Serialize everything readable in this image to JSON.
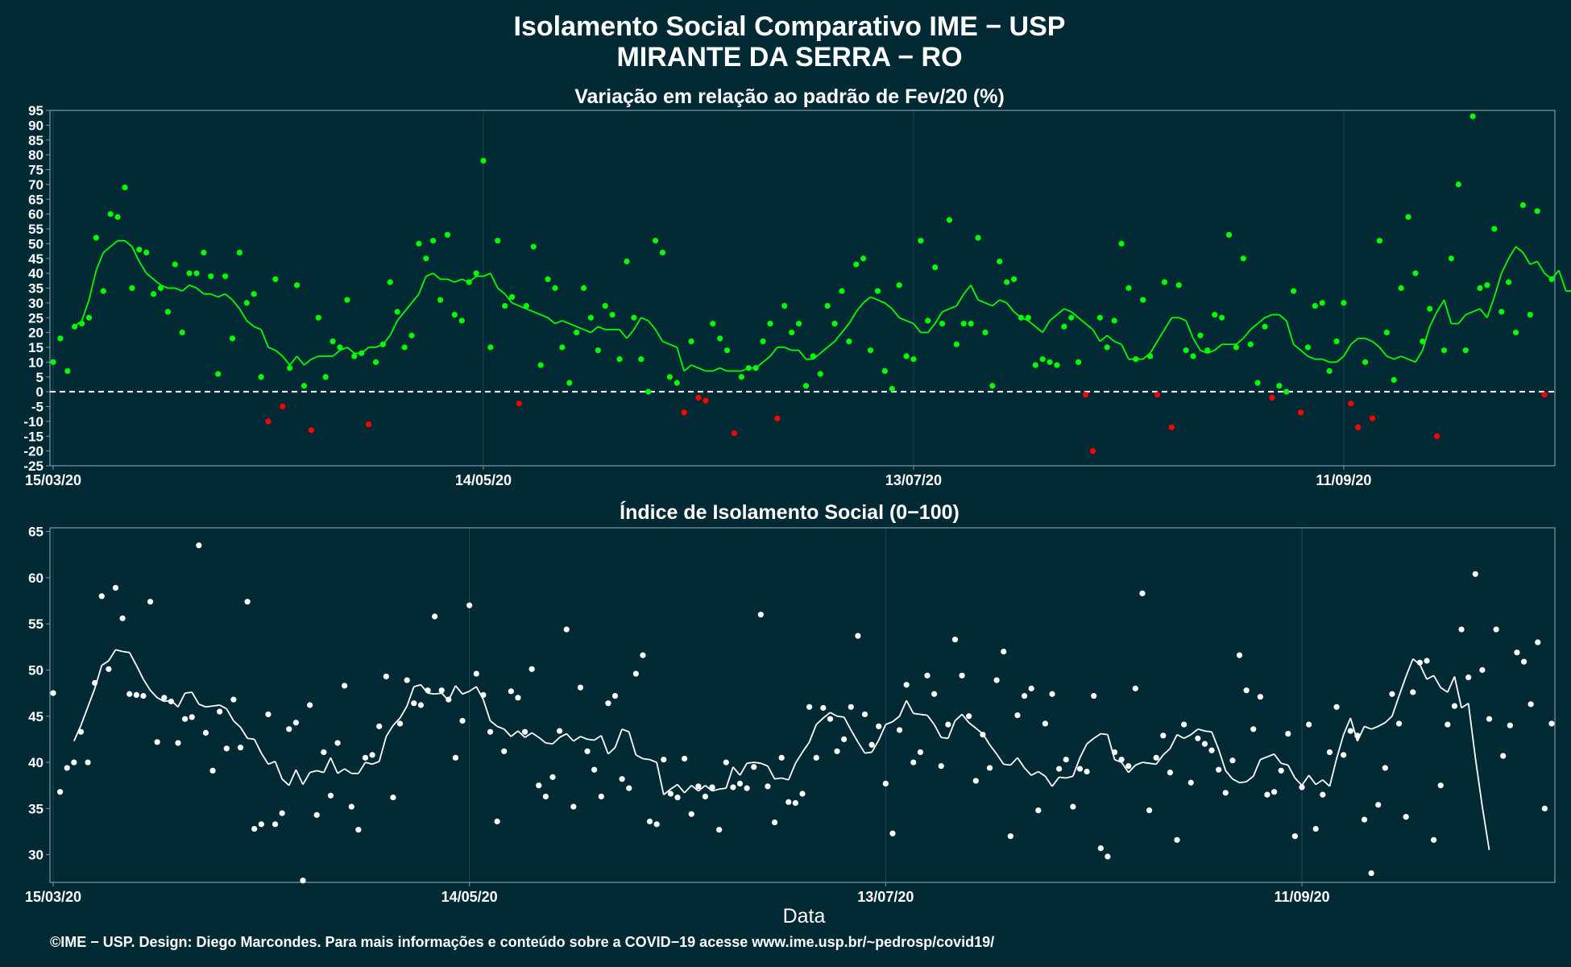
{
  "header": {
    "title_line1": "Isolamento Social Comparativo IME − USP",
    "title_line2": "MIRANTE DA SERRA − RO"
  },
  "footer": {
    "credit": "©IME − USP. Design: Diego Marcondes. Para mais informações e conteúdo sobre a COVID−19 acesse www.ime.usp.br/~pedrosp/covid19/"
  },
  "colors": {
    "background": "#022a35",
    "positive": "#00ff00",
    "negative": "#ff0000",
    "index": "#ffffff",
    "grid": "#1d4450",
    "frame": "#7a9aa3"
  },
  "chart_data": [
    {
      "type": "scatter",
      "title": "Variação em relação ao padrão de Fev/20 (%)",
      "xlabel": "",
      "ylabel": "",
      "x_start": "15/03/20",
      "x_end": "10/10/20",
      "x_ticks": [
        "15/03/20",
        "14/05/20",
        "13/07/20",
        "11/09/20"
      ],
      "ylim": [
        -25,
        95
      ],
      "y_ticks": [
        -25,
        -20,
        -15,
        -10,
        -5,
        0,
        5,
        10,
        15,
        20,
        25,
        30,
        35,
        40,
        45,
        50,
        55,
        60,
        65,
        70,
        75,
        80,
        85,
        90,
        95
      ],
      "reference_line": 0,
      "color_rule": "green when value >= 0, red when value < 0",
      "series": [
        {
          "values": [
            10,
            18,
            7,
            22,
            23,
            25,
            52,
            34,
            60,
            59,
            69,
            35,
            48,
            47,
            33,
            35,
            27,
            43,
            20,
            40,
            40,
            47,
            39,
            6,
            39,
            18,
            47,
            30,
            33,
            5,
            -10,
            38,
            -5,
            8,
            36,
            2,
            -13,
            25,
            5,
            17,
            15,
            31,
            12,
            13,
            -11,
            10,
            16,
            37,
            27,
            15,
            19,
            50,
            45,
            51,
            31,
            53,
            26,
            24,
            37,
            40,
            78,
            15,
            51,
            29,
            32,
            -4,
            29,
            49,
            9,
            38,
            35,
            15,
            3,
            20,
            35,
            25,
            14,
            29,
            26,
            11,
            44,
            25,
            11,
            0,
            51,
            47,
            5,
            3,
            -7,
            17,
            -2,
            -3,
            23,
            18,
            14,
            -14,
            5,
            8,
            8,
            17,
            23,
            -9,
            29,
            20,
            23,
            2,
            12,
            6,
            29,
            23,
            34,
            17,
            43,
            45,
            14,
            34,
            7,
            1,
            36,
            12,
            11,
            51,
            24,
            42,
            23,
            58,
            16,
            23,
            23,
            52,
            20,
            2,
            44,
            37,
            38,
            25,
            25,
            9,
            11,
            10,
            9,
            22,
            25,
            10,
            -1,
            -20,
            25,
            15,
            24,
            50,
            35,
            11,
            31,
            12,
            -1,
            37,
            -12,
            36,
            14,
            12,
            19,
            14,
            26,
            25,
            53,
            15,
            45,
            16,
            3,
            22,
            -2,
            2,
            0,
            34,
            -7,
            15,
            29,
            30,
            7,
            17,
            30,
            -4,
            -12,
            10,
            -9,
            51,
            20,
            4,
            35,
            59,
            40,
            17,
            28,
            -15,
            14,
            45,
            70,
            14,
            93,
            35,
            36,
            55,
            27,
            37,
            20,
            63,
            26,
            61,
            -1,
            38
          ]
        },
        {
          "values": [
            null,
            null,
            null,
            22,
            24,
            31,
            41,
            47,
            49,
            51,
            51,
            49,
            44,
            40,
            38,
            36,
            35,
            35,
            34,
            36,
            35,
            33,
            33,
            32,
            33,
            31,
            28,
            24,
            22,
            21,
            15,
            14,
            12,
            9,
            12,
            9,
            11,
            12,
            12,
            12,
            14,
            15,
            13,
            13,
            15,
            15,
            16,
            19,
            24,
            27,
            30,
            33,
            39,
            40,
            38,
            38,
            37,
            38,
            37,
            39,
            39,
            40,
            35,
            33,
            30,
            29,
            28,
            27,
            26,
            25,
            23,
            24,
            23,
            22,
            21,
            20,
            22,
            21,
            21,
            21,
            18,
            21,
            25,
            24,
            21,
            17,
            16,
            15,
            7,
            9,
            8,
            7,
            7,
            8,
            7,
            7,
            7,
            8,
            8,
            10,
            12,
            15,
            15,
            14,
            14,
            11,
            11,
            13,
            15,
            17,
            20,
            23,
            27,
            30,
            32,
            31,
            30,
            28,
            25,
            24,
            23,
            20,
            20,
            23,
            27,
            28,
            29,
            33,
            36,
            31,
            30,
            29,
            31,
            30,
            27,
            25,
            24,
            22,
            20,
            24,
            26,
            28,
            27,
            25,
            23,
            21,
            17,
            19,
            17,
            16,
            11,
            11,
            11,
            13,
            17,
            21,
            25,
            25,
            24,
            18,
            14,
            13,
            14,
            16,
            16,
            16,
            18,
            21,
            23,
            25,
            26,
            26,
            24,
            16,
            14,
            12,
            11,
            11,
            10,
            10,
            12,
            16,
            18,
            18,
            17,
            15,
            12,
            11,
            12,
            11,
            10,
            14,
            22,
            27,
            31,
            23,
            23,
            26,
            27,
            28,
            25,
            32,
            40,
            45,
            49,
            47,
            43,
            44,
            40,
            38,
            41,
            34,
            34
          ]
        }
      ]
    },
    {
      "type": "scatter",
      "title": "Índice de Isolamento Social (0−100)",
      "xlabel": "Data",
      "ylabel": "",
      "x_start": "15/03/20",
      "x_end": "10/10/20",
      "x_ticks": [
        "15/03/20",
        "14/05/20",
        "13/07/20",
        "11/09/20"
      ],
      "ylim": [
        27,
        65.4
      ],
      "y_ticks": [
        30,
        35,
        40,
        45,
        50,
        55,
        60,
        65
      ],
      "series": [
        {
          "values": [
            47.5,
            36.8,
            39.4,
            40,
            43.3,
            40,
            48.6,
            58,
            50.1,
            58.9,
            55.6,
            47.4,
            47.3,
            47.2,
            57.4,
            42.2,
            47,
            46.6,
            42.1,
            44.7,
            44.9,
            63.5,
            43.2,
            39.1,
            45.5,
            41.5,
            46.8,
            41.6,
            57.4,
            32.8,
            33.3,
            45.2,
            33.3,
            34.5,
            43.6,
            44.3,
            27.2,
            46.2,
            34.3,
            41.1,
            36.4,
            42.1,
            48.3,
            35.2,
            32.7,
            40.5,
            40.8,
            43.9,
            49.3,
            36.2,
            44.2,
            48.9,
            46.4,
            46.2,
            47.8,
            55.8,
            47.8,
            46.8,
            40.5,
            44.5,
            57,
            49.6,
            47.3,
            43.3,
            33.6,
            41.2,
            47.7,
            47,
            43.3,
            50.1,
            37.5,
            36.3,
            38.4,
            43.4,
            54.4,
            35.2,
            48.1,
            41.2,
            39.2,
            36.3,
            46.4,
            47.2,
            38.2,
            37.2,
            49.6,
            51.6,
            33.6,
            33.3,
            40.3,
            36.6,
            36.2,
            40.4,
            34.4,
            37.4,
            36.3,
            37.3,
            32.7,
            40,
            37.3,
            37.7,
            37.2,
            39.5,
            56,
            37.4,
            33.5,
            40.5,
            35.7,
            35.6,
            36.6,
            46,
            40.5,
            45.9,
            44.7,
            41.2,
            42.5,
            46,
            53.7,
            45.2,
            41.9,
            43.9,
            37.7,
            32.3,
            43.5,
            48.4,
            40,
            41.1,
            49.4,
            47.4,
            39.6,
            44.1,
            53.3,
            49.4,
            45,
            38,
            43,
            39.4,
            48.9,
            52,
            32,
            45.1,
            47.2,
            48,
            34.8,
            44.2,
            47.4,
            39.3,
            40.3,
            35.2,
            39.3,
            39,
            47.2,
            30.7,
            29.8,
            41.1,
            40.3,
            39.6,
            48,
            58.3,
            34.8,
            40.5,
            42.9,
            38.9,
            31.6,
            44.1,
            37.8,
            42.6,
            42,
            41.3,
            39.2,
            36.7,
            40.2,
            51.6,
            47.8,
            43.6,
            47.1,
            36.5,
            36.8,
            39.1,
            43.1,
            32,
            37.3,
            44.1,
            32.8,
            36.5,
            41.1,
            46,
            40.8,
            43.4,
            42.9,
            33.8,
            28,
            35.4,
            39.4,
            47.4,
            44.2,
            34.1,
            47.6,
            50.8,
            51,
            31.6,
            37.5,
            44.1,
            46.1,
            54.4,
            49.2,
            60.4,
            50,
            44.7,
            54.4,
            40.7,
            44,
            51.9,
            50.9,
            46.3,
            53,
            35,
            44.2
          ]
        },
        {
          "values": [
            null,
            null,
            null,
            42.3,
            44,
            46,
            48,
            50.5,
            51,
            52.2,
            52,
            51.9,
            50.5,
            49,
            47.8,
            47,
            46.6,
            46.7,
            46,
            47.5,
            47.6,
            46.3,
            46,
            46.1,
            46.2,
            45.8,
            44.5,
            43.8,
            42.6,
            42.5,
            41,
            39.8,
            40.1,
            38.2,
            37.5,
            39.2,
            37.6,
            38.9,
            39.1,
            38.9,
            40.5,
            38.8,
            39.3,
            38.8,
            38.8,
            40,
            39.8,
            40.1,
            42.8,
            44,
            44.8,
            46.1,
            48.2,
            48.4,
            47.5,
            47.4,
            47.5,
            46.7,
            48.3,
            47.4,
            47.7,
            48.2,
            46.8,
            44.5,
            43.9,
            43.6,
            42.8,
            43.4,
            42.7,
            43.2,
            42.7,
            42.1,
            42,
            42.7,
            43.1,
            42.3,
            42.8,
            42.5,
            42.4,
            42.9,
            40.9,
            41.6,
            43.6,
            43.3,
            40.8,
            40.4,
            40.3,
            40,
            36.5,
            37.1,
            37.6,
            36.7,
            37.5,
            36.9,
            37.5,
            36.9,
            37.1,
            37.2,
            39.5,
            38.6,
            39.9,
            40,
            39.9,
            39.6,
            38.2,
            38.3,
            38.1,
            39.9,
            41.1,
            42.2,
            44.1,
            44.8,
            45.4,
            45,
            44.9,
            43.5,
            42.2,
            41,
            41.1,
            42.4,
            44.1,
            44.4,
            45,
            46.7,
            45.3,
            45.2,
            45.1,
            44.1,
            42.7,
            42.6,
            44.5,
            45.2,
            44.3,
            43.7,
            43.1,
            41.9,
            40.9,
            39.8,
            39.7,
            40.5,
            39.4,
            38.6,
            39,
            38.5,
            37.4,
            38.4,
            38.3,
            38.5,
            40.5,
            42,
            42.6,
            43.1,
            43,
            40.3,
            40,
            38.9,
            39.7,
            40,
            39.9,
            39.8,
            40.8,
            41.5,
            43,
            42.6,
            43,
            43.6,
            43.4,
            43.3,
            41.4,
            39.1,
            38.2,
            37.8,
            37.9,
            38.5,
            40.3,
            40.6,
            40.9,
            39.9,
            39.7,
            38.3,
            37.5,
            38.6,
            37.6,
            38.1,
            37.4,
            40.4,
            43,
            44.8,
            42.3,
            43.9,
            43.6,
            43.9,
            44.3,
            45,
            47.2,
            49.3,
            51.2,
            50.6,
            49,
            49.4,
            48.1,
            47.6,
            49.3,
            45.9,
            46.4,
            40.5,
            35.2,
            30.5
          ]
        }
      ]
    }
  ]
}
